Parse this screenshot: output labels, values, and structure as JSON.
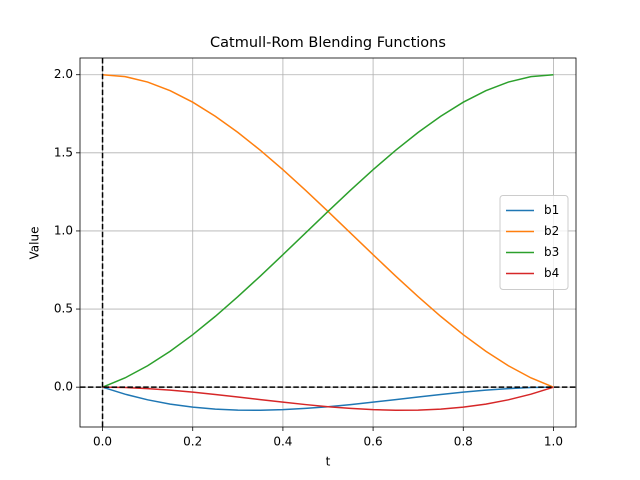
{
  "chart_data": {
    "type": "line",
    "title": "Catmull-Rom Blending Functions",
    "xlabel": "t",
    "ylabel": "Value",
    "x": [
      0,
      0.05,
      0.1,
      0.15,
      0.2,
      0.25,
      0.3,
      0.35,
      0.4,
      0.45,
      0.5,
      0.55,
      0.6,
      0.65,
      0.7,
      0.75,
      0.8,
      0.85,
      0.9,
      0.95,
      1
    ],
    "series": [
      {
        "name": "b1",
        "color": "#1f77b4",
        "values": [
          0,
          -0.0451,
          -0.081,
          -0.1084,
          -0.128,
          -0.1406,
          -0.147,
          -0.1479,
          -0.144,
          -0.1361,
          -0.125,
          -0.1114,
          -0.096,
          -0.0796,
          -0.063,
          -0.0469,
          -0.032,
          -0.0191,
          -0.009,
          -0.0024,
          0
        ]
      },
      {
        "name": "b2",
        "color": "#ff7f0e",
        "values": [
          2,
          1.9879,
          1.953,
          1.8976,
          1.824,
          1.7344,
          1.631,
          1.5161,
          1.392,
          1.2609,
          1.125,
          0.9866,
          0.848,
          0.7114,
          0.579,
          0.4531,
          0.336,
          0.2299,
          0.137,
          0.0596,
          0
        ]
      },
      {
        "name": "b3",
        "color": "#2ca02c",
        "values": [
          0,
          0.0596,
          0.137,
          0.2299,
          0.336,
          0.4531,
          0.579,
          0.7114,
          0.848,
          0.9866,
          1.125,
          1.2609,
          1.392,
          1.5161,
          1.631,
          1.7344,
          1.824,
          1.8976,
          1.953,
          1.9879,
          2
        ]
      },
      {
        "name": "b4",
        "color": "#d62728",
        "values": [
          0,
          -0.0024,
          -0.009,
          -0.0191,
          -0.032,
          -0.0469,
          -0.063,
          -0.0796,
          -0.096,
          -0.1114,
          -0.125,
          -0.1361,
          -0.144,
          -0.1479,
          -0.147,
          -0.1406,
          -0.128,
          -0.1084,
          -0.081,
          -0.0451,
          0
        ]
      }
    ],
    "xlim": [
      -0.05,
      1.05
    ],
    "ylim": [
      -0.255,
      2.107
    ],
    "xticks": [
      {
        "value": 0,
        "label": "0.0"
      },
      {
        "value": 0.2,
        "label": "0.2"
      },
      {
        "value": 0.4,
        "label": "0.4"
      },
      {
        "value": 0.6,
        "label": "0.6"
      },
      {
        "value": 0.8,
        "label": "0.8"
      },
      {
        "value": 1,
        "label": "1.0"
      }
    ],
    "yticks": [
      {
        "value": 0,
        "label": "0.0"
      },
      {
        "value": 0.5,
        "label": "0.5"
      },
      {
        "value": 1,
        "label": "1.0"
      },
      {
        "value": 1.5,
        "label": "1.5"
      },
      {
        "value": 2,
        "label": "2.0"
      }
    ],
    "grid": true,
    "axvline": 0,
    "axhline": 0,
    "legend": "center right"
  }
}
